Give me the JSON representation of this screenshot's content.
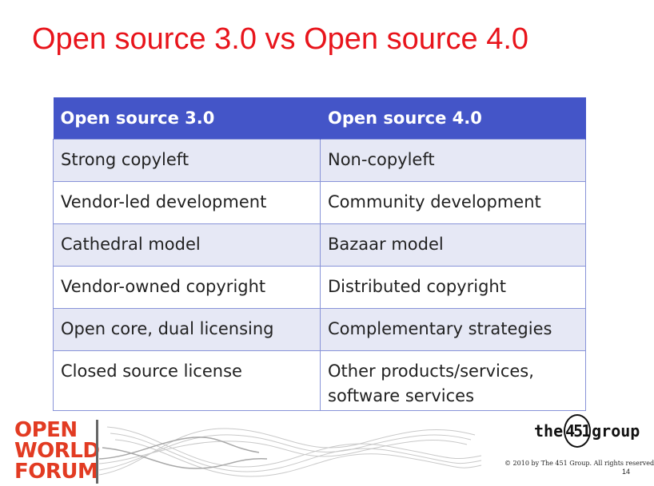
{
  "slide": {
    "title": "Open source 3.0 vs Open source 4.0",
    "page_number": "14",
    "copyright": "© 2010 by The 451 Group. All rights reserved"
  },
  "table": {
    "headers": [
      "Open source 3.0",
      "Open source 4.0"
    ],
    "rows": [
      [
        "Strong copyleft",
        "Non-copyleft"
      ],
      [
        "Vendor-led development",
        "Community development"
      ],
      [
        "Cathedral model",
        "Bazaar model"
      ],
      [
        "Vendor-owned copyright",
        "Distributed copyright"
      ],
      [
        "Open core, dual licensing",
        "Complementary strategies"
      ],
      [
        "Closed source license",
        "Other products/services,"
      ]
    ],
    "last_row_extra_line": "software services"
  },
  "logos": {
    "owf_line1": "OPEN",
    "owf_line2": "WORLD",
    "owf_line3": "FORUM",
    "group_prefix": "the",
    "group_number": "451",
    "group_suffix": "group"
  },
  "colors": {
    "title": "#e8141b",
    "header_bg": "#4455c8",
    "row_alt_bg": "#e6e8f5",
    "owf_logo": "#e23b22"
  }
}
